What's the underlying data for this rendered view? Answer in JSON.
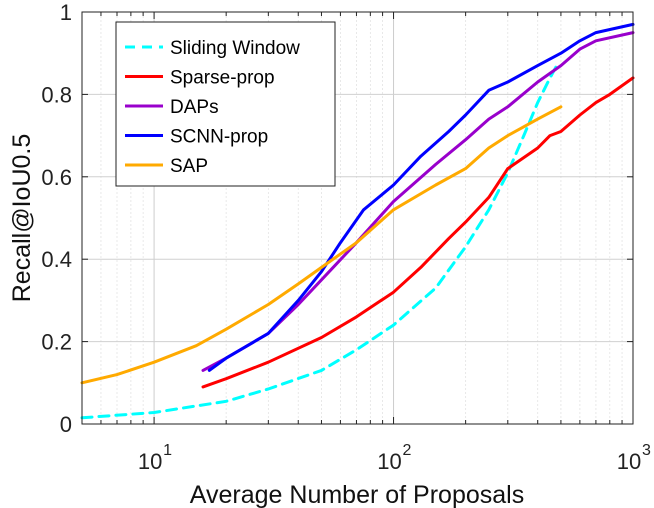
{
  "chart_data": {
    "type": "line",
    "xlabel": "Average Number of Proposals",
    "ylabel": "Recall@IoU0.5",
    "xscale": "log",
    "xlim": [
      5,
      1000
    ],
    "ylim": [
      0,
      1
    ],
    "x_ticks": [
      {
        "value": 10,
        "base": "10",
        "exp": "1"
      },
      {
        "value": 100,
        "base": "10",
        "exp": "2"
      },
      {
        "value": 1000,
        "base": "10",
        "exp": "3"
      }
    ],
    "y_ticks": [
      {
        "value": 0,
        "label": "0"
      },
      {
        "value": 0.2,
        "label": "0.2"
      },
      {
        "value": 0.4,
        "label": "0.4"
      },
      {
        "value": 0.6,
        "label": "0.6"
      },
      {
        "value": 0.8,
        "label": "0.8"
      },
      {
        "value": 1,
        "label": "1"
      }
    ],
    "grid": true,
    "legend_position": "top-left",
    "series": [
      {
        "name": "Sliding Window",
        "color": "#00FFFF",
        "dashed": true,
        "points": [
          [
            5,
            0.015
          ],
          [
            10,
            0.028
          ],
          [
            20,
            0.055
          ],
          [
            30,
            0.085
          ],
          [
            50,
            0.13
          ],
          [
            70,
            0.18
          ],
          [
            100,
            0.24
          ],
          [
            150,
            0.33
          ],
          [
            200,
            0.43
          ],
          [
            250,
            0.52
          ],
          [
            300,
            0.61
          ],
          [
            350,
            0.7
          ],
          [
            400,
            0.78
          ],
          [
            450,
            0.84
          ],
          [
            480,
            0.87
          ]
        ]
      },
      {
        "name": "Sparse-prop",
        "color": "#FF0000",
        "dashed": false,
        "points": [
          [
            16,
            0.09
          ],
          [
            20,
            0.11
          ],
          [
            30,
            0.15
          ],
          [
            50,
            0.21
          ],
          [
            70,
            0.26
          ],
          [
            100,
            0.32
          ],
          [
            130,
            0.38
          ],
          [
            170,
            0.45
          ],
          [
            200,
            0.49
          ],
          [
            250,
            0.55
          ],
          [
            300,
            0.62
          ],
          [
            400,
            0.67
          ],
          [
            450,
            0.7
          ],
          [
            500,
            0.71
          ],
          [
            600,
            0.75
          ],
          [
            700,
            0.78
          ],
          [
            800,
            0.8
          ],
          [
            1000,
            0.84
          ]
        ]
      },
      {
        "name": "DAPs",
        "color": "#9900CC",
        "dashed": false,
        "points": [
          [
            16,
            0.13
          ],
          [
            20,
            0.16
          ],
          [
            30,
            0.22
          ],
          [
            40,
            0.29
          ],
          [
            50,
            0.35
          ],
          [
            70,
            0.44
          ],
          [
            100,
            0.54
          ],
          [
            150,
            0.63
          ],
          [
            200,
            0.69
          ],
          [
            250,
            0.74
          ],
          [
            300,
            0.77
          ],
          [
            400,
            0.83
          ],
          [
            500,
            0.87
          ],
          [
            600,
            0.91
          ],
          [
            700,
            0.93
          ],
          [
            1000,
            0.95
          ]
        ]
      },
      {
        "name": "SCNN-prop",
        "color": "#0000FF",
        "dashed": false,
        "points": [
          [
            17,
            0.13
          ],
          [
            20,
            0.16
          ],
          [
            30,
            0.22
          ],
          [
            40,
            0.3
          ],
          [
            50,
            0.37
          ],
          [
            60,
            0.44
          ],
          [
            75,
            0.52
          ],
          [
            100,
            0.58
          ],
          [
            130,
            0.65
          ],
          [
            170,
            0.71
          ],
          [
            200,
            0.75
          ],
          [
            250,
            0.81
          ],
          [
            300,
            0.83
          ],
          [
            400,
            0.87
          ],
          [
            500,
            0.9
          ],
          [
            600,
            0.93
          ],
          [
            700,
            0.95
          ],
          [
            1000,
            0.97
          ]
        ]
      },
      {
        "name": "SAP",
        "color": "#FFAA00",
        "dashed": false,
        "points": [
          [
            5,
            0.1
          ],
          [
            7,
            0.12
          ],
          [
            10,
            0.15
          ],
          [
            15,
            0.19
          ],
          [
            20,
            0.23
          ],
          [
            30,
            0.29
          ],
          [
            40,
            0.34
          ],
          [
            50,
            0.38
          ],
          [
            70,
            0.44
          ],
          [
            100,
            0.52
          ],
          [
            150,
            0.58
          ],
          [
            200,
            0.62
          ],
          [
            250,
            0.67
          ],
          [
            300,
            0.7
          ],
          [
            400,
            0.74
          ],
          [
            500,
            0.77
          ]
        ]
      }
    ]
  }
}
